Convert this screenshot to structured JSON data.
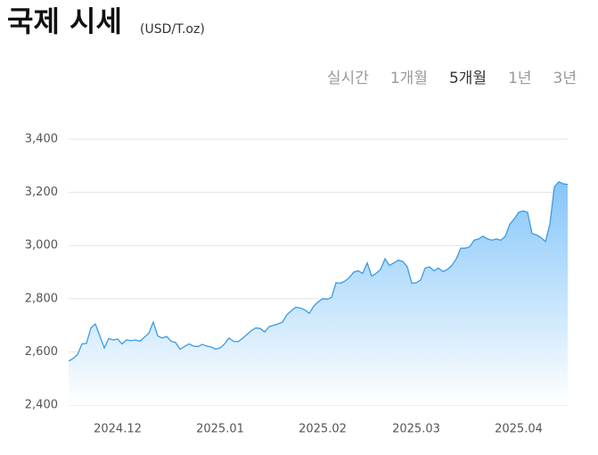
{
  "header": {
    "title": "국제 시세",
    "unit": "(USD/T.oz)",
    "tabs": [
      "실시간",
      "1개월",
      "5개월",
      "1년",
      "3년"
    ],
    "active_tab": 2
  },
  "chart_data": {
    "type": "area",
    "color": "#3a9be8",
    "grid": true,
    "ylim": [
      2400,
      3400
    ],
    "yticks": [
      {
        "value": 2400,
        "label": "2,400"
      },
      {
        "value": 2600,
        "label": "2,600"
      },
      {
        "value": 2800,
        "label": "2,800"
      },
      {
        "value": 3000,
        "label": "3,000"
      },
      {
        "value": 3200,
        "label": "3,200"
      },
      {
        "value": 3400,
        "label": "3,400"
      }
    ],
    "categories": [
      null,
      null,
      null,
      null,
      null,
      null,
      null,
      null,
      null,
      null,
      null,
      "2024.12",
      null,
      null,
      null,
      null,
      null,
      null,
      null,
      null,
      null,
      null,
      null,
      null,
      null,
      null,
      null,
      null,
      null,
      null,
      null,
      null,
      null,
      null,
      "2025.01",
      null,
      null,
      null,
      null,
      null,
      null,
      null,
      null,
      null,
      null,
      null,
      null,
      null,
      null,
      null,
      null,
      null,
      null,
      null,
      null,
      null,
      null,
      "2025.02",
      null,
      null,
      null,
      null,
      null,
      null,
      null,
      null,
      null,
      null,
      null,
      null,
      null,
      null,
      null,
      null,
      null,
      null,
      null,
      null,
      "2025.03",
      null,
      null,
      null,
      null,
      null,
      null,
      null,
      null,
      null,
      null,
      null,
      null,
      null,
      null,
      null,
      null,
      null,
      null,
      null,
      null,
      null,
      null,
      "2025.04",
      null,
      null,
      null,
      null,
      null,
      null,
      null,
      null,
      null,
      null,
      null
    ],
    "values": [
      2565,
      2575,
      2590,
      2630,
      2632,
      2690,
      2705,
      2660,
      2615,
      2650,
      2645,
      2648,
      2630,
      2645,
      2642,
      2645,
      2640,
      2655,
      2670,
      2712,
      2660,
      2652,
      2658,
      2640,
      2635,
      2610,
      2620,
      2630,
      2622,
      2620,
      2628,
      2622,
      2618,
      2610,
      2615,
      2630,
      2652,
      2640,
      2638,
      2650,
      2665,
      2680,
      2690,
      2688,
      2675,
      2695,
      2700,
      2705,
      2712,
      2740,
      2755,
      2768,
      2765,
      2758,
      2745,
      2772,
      2788,
      2800,
      2798,
      2805,
      2860,
      2858,
      2866,
      2880,
      2900,
      2905,
      2895,
      2935,
      2885,
      2895,
      2910,
      2950,
      2925,
      2935,
      2945,
      2940,
      2920,
      2858,
      2860,
      2870,
      2915,
      2920,
      2905,
      2915,
      2902,
      2910,
      2925,
      2950,
      2990,
      2990,
      2995,
      3020,
      3025,
      3035,
      3025,
      3020,
      3025,
      3020,
      3035,
      3080,
      3100,
      3125,
      3130,
      3125,
      3045,
      3040,
      3030,
      3015,
      3080,
      3220,
      3240,
      3232,
      3230
    ]
  }
}
